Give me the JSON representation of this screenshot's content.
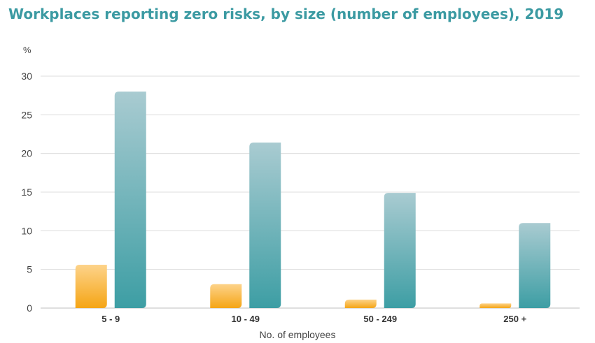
{
  "chart_data": {
    "type": "bar",
    "title": "Workplaces reporting zero risks, by size (number of employees), 2019",
    "ylabel": "%",
    "xlabel": "No. of employees",
    "categories": [
      "5 - 9",
      "10 - 49",
      "50 - 249",
      "250 +"
    ],
    "series": [
      {
        "values": [
          5.6,
          3.1,
          1.1,
          0.6
        ],
        "color": "#f5a61c"
      },
      {
        "values": [
          28.0,
          21.4,
          14.9,
          11.0
        ],
        "color": "#3f9fa5"
      }
    ],
    "ylim": [
      0,
      30
    ],
    "yticks": [
      "0",
      "5",
      "10",
      "15",
      "20",
      "25",
      "30"
    ],
    "grid": true,
    "legend": "none"
  }
}
